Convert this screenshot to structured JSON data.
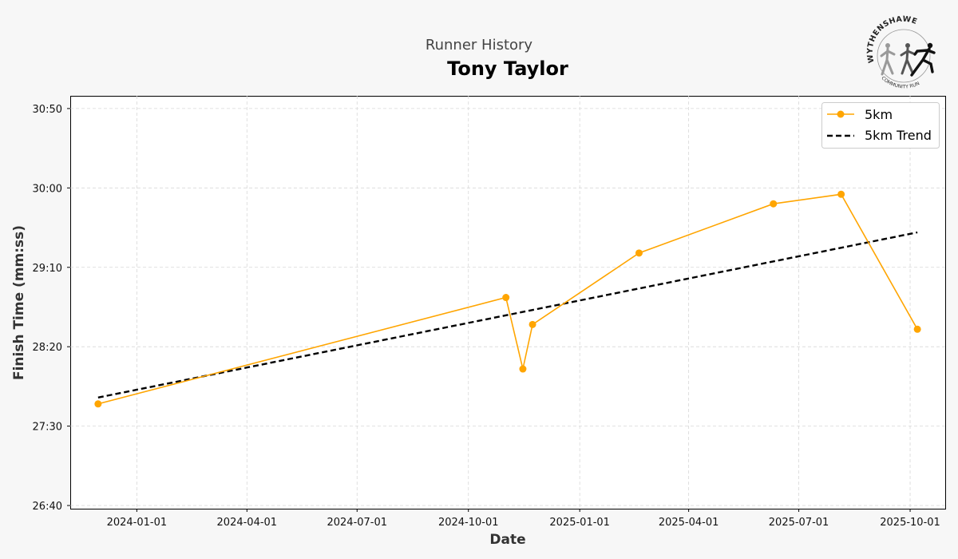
{
  "header": {
    "suptitle": "Runner History",
    "title": "Tony Taylor"
  },
  "logo": {
    "name": "WYTHENSHAWE",
    "subtitle": "COMMUNITY RUN"
  },
  "chart_data": {
    "type": "line",
    "xlabel": "Date",
    "ylabel": "Finish Time (mm:ss)",
    "x_ticks": [
      "2024-01-01",
      "2024-04-01",
      "2024-07-01",
      "2024-10-01",
      "2025-01-01",
      "2025-04-01",
      "2025-07-01",
      "2025-10-01"
    ],
    "y_ticks": [
      "26:40",
      "27:30",
      "28:20",
      "29:10",
      "30:00",
      "30:50"
    ],
    "ylim": [
      "26:38",
      "30:58"
    ],
    "xlim": [
      "2023-11-07",
      "2025-10-30"
    ],
    "grid": true,
    "legend_position": "top-right",
    "series": [
      {
        "name": "5km",
        "color": "#ffa500",
        "marker": "circle",
        "line_style": "solid",
        "points": [
          {
            "x": "2023-11-30",
            "y": "27:44"
          },
          {
            "x": "2024-11-01",
            "y": "28:51"
          },
          {
            "x": "2024-11-15",
            "y": "28:06"
          },
          {
            "x": "2024-11-23",
            "y": "28:34"
          },
          {
            "x": "2025-02-19",
            "y": "29:19"
          },
          {
            "x": "2025-06-10",
            "y": "29:50"
          },
          {
            "x": "2025-08-05",
            "y": "29:56"
          },
          {
            "x": "2025-10-07",
            "y": "28:31"
          }
        ]
      },
      {
        "name": "5km Trend",
        "color": "#000000",
        "line_style": "dashed",
        "points": [
          {
            "x": "2023-11-30",
            "y": "27:48"
          },
          {
            "x": "2025-10-07",
            "y": "29:32"
          }
        ]
      }
    ]
  }
}
